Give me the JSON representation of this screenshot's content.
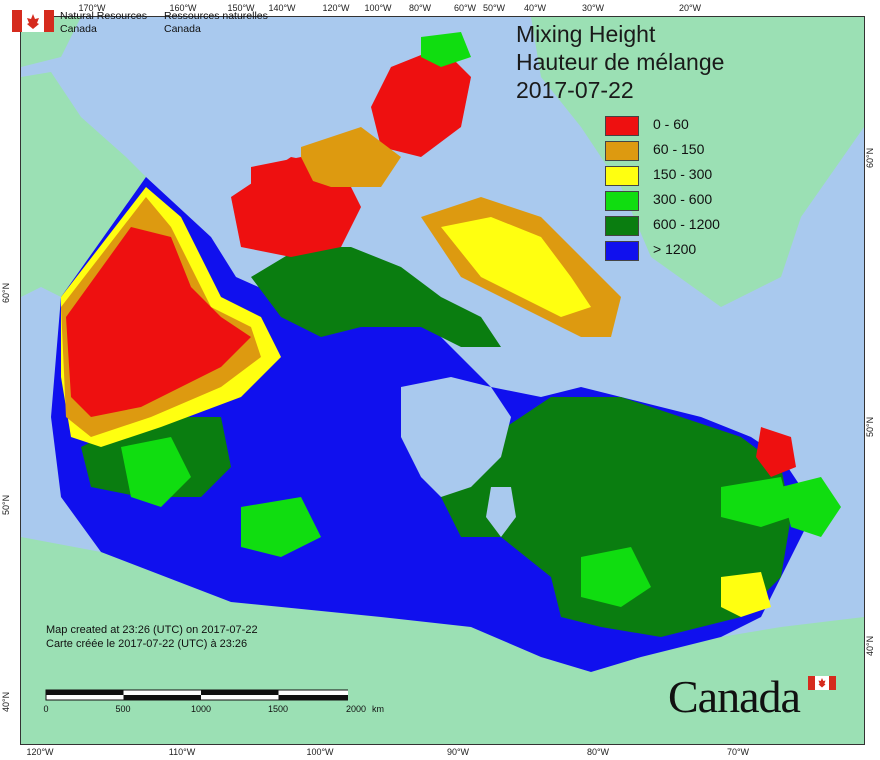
{
  "title": {
    "line1": "Mixing Height",
    "line2": "Hauteur de mélange",
    "line3": "2017-07-22"
  },
  "legend": [
    {
      "label": "0 - 60",
      "color": "#ee1010"
    },
    {
      "label": "60 - 150",
      "color": "#dd9a10"
    },
    {
      "label": "150 - 300",
      "color": "#ffff10"
    },
    {
      "label": "300 - 600",
      "color": "#10dd10"
    },
    {
      "label": "600 - 1200",
      "color": "#0a7d10"
    },
    {
      "label": "> 1200",
      "color": "#1010ee"
    }
  ],
  "agency": {
    "en_line1": "Natural Resources",
    "en_line2": "Canada",
    "fr_line1": "Ressources naturelles",
    "fr_line2": "Canada"
  },
  "credit": {
    "en": "Map created at 23:26 (UTC) on 2017-07-22",
    "fr": "Carte créée le 2017-07-22 (UTC) à 23:26"
  },
  "scale": {
    "labels": [
      "0",
      "500",
      "1000",
      "1500",
      "2000"
    ],
    "unit": "km"
  },
  "wordmark": "Canada",
  "graticule": {
    "top": [
      "170°W",
      "160°W",
      "150°W",
      "140°W",
      "120°W",
      "100°W",
      "80°W",
      "60°W",
      "50°W",
      "40°W",
      "30°W",
      "20°W"
    ],
    "bottom": [
      "120°W",
      "110°W",
      "100°W",
      "90°W",
      "80°W",
      "70°W"
    ],
    "left": [
      "60°N",
      "50°N",
      "40°N"
    ],
    "right": [
      "60°N",
      "50°N",
      "40°N"
    ]
  },
  "colors": {
    "ocean": "#a9c9ee",
    "land_other": "#9be0b4",
    "hudson_bay": "#a9c9ee"
  }
}
